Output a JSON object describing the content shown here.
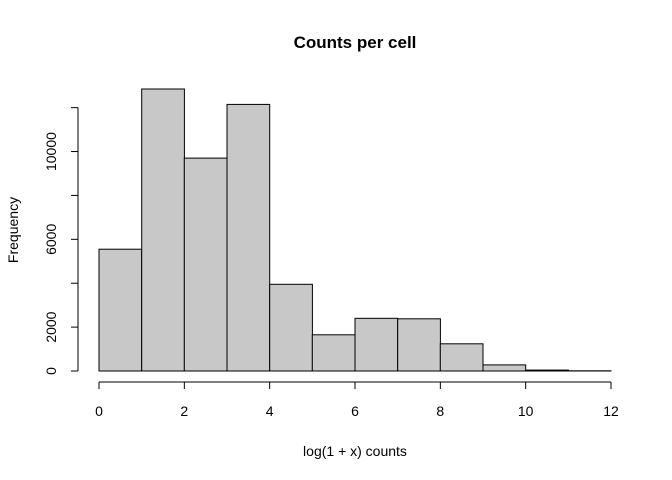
{
  "chart_data": {
    "type": "bar",
    "subtype": "histogram",
    "title": "Counts per cell",
    "xlabel": "log(1 + x) counts",
    "ylabel": "Frequency",
    "bins": [
      {
        "x0": 0,
        "x1": 1,
        "count": 5550
      },
      {
        "x0": 1,
        "x1": 2,
        "count": 12850
      },
      {
        "x0": 2,
        "x1": 3,
        "count": 9700
      },
      {
        "x0": 3,
        "x1": 4,
        "count": 12150
      },
      {
        "x0": 4,
        "x1": 5,
        "count": 3950
      },
      {
        "x0": 5,
        "x1": 6,
        "count": 1650
      },
      {
        "x0": 6,
        "x1": 7,
        "count": 2400
      },
      {
        "x0": 7,
        "x1": 8,
        "count": 2380
      },
      {
        "x0": 8,
        "x1": 9,
        "count": 1240
      },
      {
        "x0": 9,
        "x1": 10,
        "count": 280
      },
      {
        "x0": 10,
        "x1": 11,
        "count": 40
      },
      {
        "x0": 11,
        "x1": 12,
        "count": 10
      }
    ],
    "xticks": [
      0,
      2,
      4,
      6,
      8,
      10,
      12
    ],
    "yticks": [
      0,
      2000,
      6000,
      10000
    ],
    "xlim": [
      0,
      12
    ],
    "ylim": [
      0,
      12850
    ],
    "grid": false,
    "legend": "none",
    "bar_fill": "#c8c8c8",
    "bar_stroke": "#000000"
  }
}
